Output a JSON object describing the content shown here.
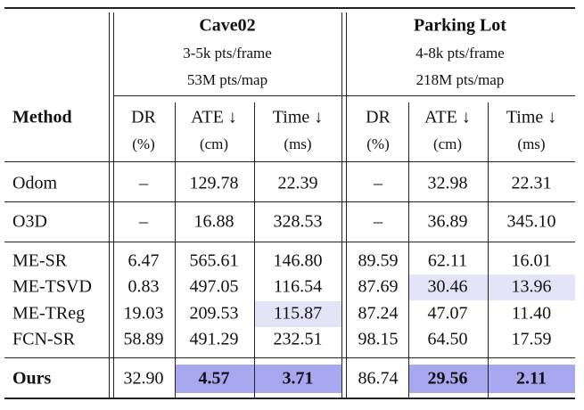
{
  "table": {
    "groups": [
      {
        "title": "Cave02",
        "lines": [
          "3-5k pts/frame",
          "53M pts/map"
        ],
        "metrics": [
          {
            "name": "DR",
            "unit": "(%)"
          },
          {
            "name": "ATE ↓",
            "unit": "(cm)"
          },
          {
            "name": "Time ↓",
            "unit": "(ms)"
          }
        ]
      },
      {
        "title": "Parking Lot",
        "lines": [
          "4-8k pts/frame",
          "218M pts/map"
        ],
        "metrics": [
          {
            "name": "DR",
            "unit": "(%)"
          },
          {
            "name": "ATE ↓",
            "unit": "(cm)"
          },
          {
            "name": "Time ↓",
            "unit": "(ms)"
          }
        ]
      }
    ],
    "method_header": "Method",
    "rows": [
      [
        "Odom",
        "–",
        "129.78",
        "22.39",
        "–",
        "32.98",
        "22.31"
      ],
      [
        "O3D",
        "–",
        "16.88",
        "328.53",
        "–",
        "36.89",
        "345.10"
      ],
      [
        "ME-SR",
        "6.47",
        "565.61",
        "146.80",
        "89.59",
        "62.11",
        "16.01"
      ],
      [
        "ME-TSVD",
        "0.83",
        "497.05",
        "116.54",
        "87.69",
        "30.46",
        "13.96"
      ],
      [
        "ME-TReg",
        "19.03",
        "209.53",
        "115.87",
        "87.24",
        "47.07",
        "11.40"
      ],
      [
        "FCN-SR",
        "58.89",
        "491.29",
        "232.51",
        "98.15",
        "64.50",
        "17.59"
      ],
      [
        "Ours",
        "32.90",
        "4.57",
        "3.71",
        "86.74",
        "29.56",
        "2.11"
      ]
    ]
  }
}
